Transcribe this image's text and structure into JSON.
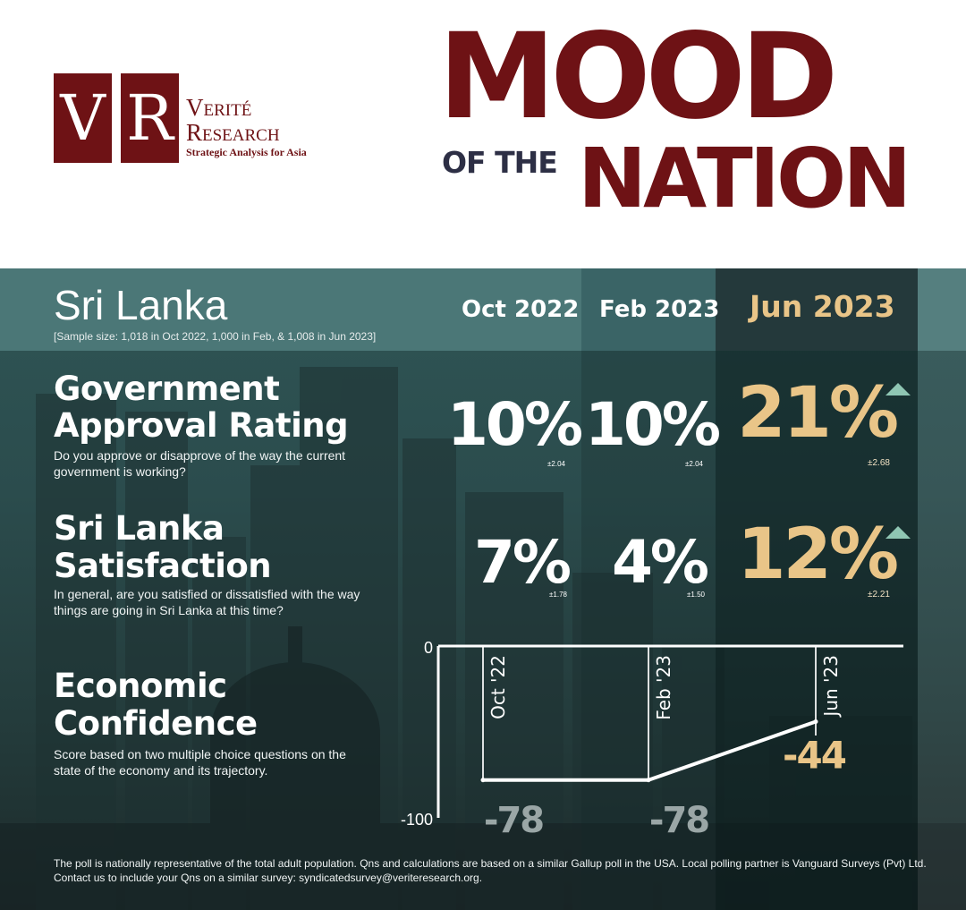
{
  "logo": {
    "mark_v": "V",
    "mark_r": "R",
    "line1": "Verité",
    "line2": "Research",
    "tagline": "Strategic Analysis for Asia"
  },
  "title": {
    "mood": "MOOD",
    "of_the": "OF THE",
    "nation": "NATION"
  },
  "colors": {
    "brand": "#6e1215",
    "navy": "#2d2f45",
    "panel": "#2b4c4d",
    "highlight": "#e9c588",
    "up_arrow": "#8fc6b3"
  },
  "country": "Sri Lanka",
  "sample_note": "[Sample size: 1,018 in Oct 2022, 1,000 in Feb, & 1,008 in Jun 2023]",
  "periods": [
    "Oct 2022",
    "Feb 2023",
    "Jun 2023"
  ],
  "metrics": [
    {
      "title_line1": "Government",
      "title_line2": "Approval Rating",
      "question": "Do you approve or disapprove of the way the current government is working?",
      "values": [
        "10%",
        "10%",
        "21%"
      ],
      "moe": [
        "±2.04",
        "±2.04",
        "±2.68"
      ],
      "trend_icon": "triangle-up-icon"
    },
    {
      "title_line1": "Sri Lanka",
      "title_line2": "Satisfaction",
      "question": "In general, are you satisfied or dissatisfied with the way things are going in Sri Lanka at this time?",
      "values": [
        "7%",
        "4%",
        "12%"
      ],
      "moe": [
        "±1.78",
        "±1.50",
        "±2.21"
      ],
      "trend_icon": "triangle-up-icon"
    }
  ],
  "economic": {
    "title_line1": "Economic",
    "title_line2": "Confidence",
    "description": "Score based on two multiple choice questions on the state of the economy and its trajectory."
  },
  "chart_data": {
    "type": "line",
    "categories": [
      "Oct '22",
      "Feb '23",
      "Jun '23"
    ],
    "values": [
      -78,
      -78,
      -44
    ],
    "value_labels": [
      "-78",
      "-78",
      "-44"
    ],
    "ylim": [
      -100,
      0
    ],
    "y_tick_labels": [
      "0",
      "-100"
    ],
    "title": "",
    "xlabel": "",
    "ylabel": ""
  },
  "footer": "The poll is nationally representative of the total adult population. Qns and calculations are based on a similar Gallup poll in the USA. Local polling partner is Vanguard Surveys (Pvt) Ltd. Contact us to include your Qns on a similar survey: syndicatedsurvey@veriteresearch.org."
}
